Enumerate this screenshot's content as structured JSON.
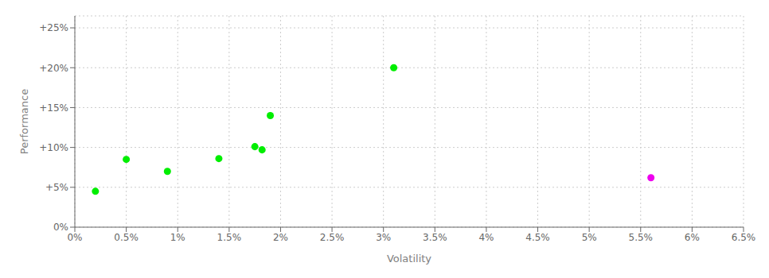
{
  "chart_data": {
    "type": "scatter",
    "xlabel": "Volatility",
    "ylabel": "Performance",
    "series": [
      {
        "color": "#00ee00",
        "x": [
          0.002,
          0.005,
          0.009,
          0.014,
          0.0175,
          0.0182,
          0.019,
          0.031
        ],
        "values": [
          0.045,
          0.085,
          0.07,
          0.086,
          0.101,
          0.097,
          0.14,
          0.2
        ]
      },
      {
        "color": "#ee00ee",
        "x": [
          0.056
        ],
        "values": [
          0.062
        ]
      }
    ],
    "xlim": [
      0.0,
      0.065
    ],
    "ylim": [
      0.0,
      0.265
    ],
    "xticks": [
      {
        "value": 0.0,
        "label": "0%"
      },
      {
        "value": 0.005,
        "label": "0.5%"
      },
      {
        "value": 0.01,
        "label": "1%"
      },
      {
        "value": 0.015,
        "label": "1.5%"
      },
      {
        "value": 0.02,
        "label": "2%"
      },
      {
        "value": 0.025,
        "label": "2.5%"
      },
      {
        "value": 0.03,
        "label": "3%"
      },
      {
        "value": 0.035,
        "label": "3.5%"
      },
      {
        "value": 0.04,
        "label": "4%"
      },
      {
        "value": 0.045,
        "label": "4.5%"
      },
      {
        "value": 0.05,
        "label": "5%"
      },
      {
        "value": 0.055,
        "label": "5.5%"
      },
      {
        "value": 0.06,
        "label": "6%"
      },
      {
        "value": 0.065,
        "label": "6.5%"
      }
    ],
    "yticks": [
      {
        "value": 0.0,
        "label": "0%"
      },
      {
        "value": 0.05,
        "label": "+5%"
      },
      {
        "value": 0.1,
        "label": "+10%"
      },
      {
        "value": 0.15,
        "label": "+15%"
      },
      {
        "value": 0.2,
        "label": "+20%"
      },
      {
        "value": 0.25,
        "label": "+25%"
      }
    ],
    "grid": true
  }
}
